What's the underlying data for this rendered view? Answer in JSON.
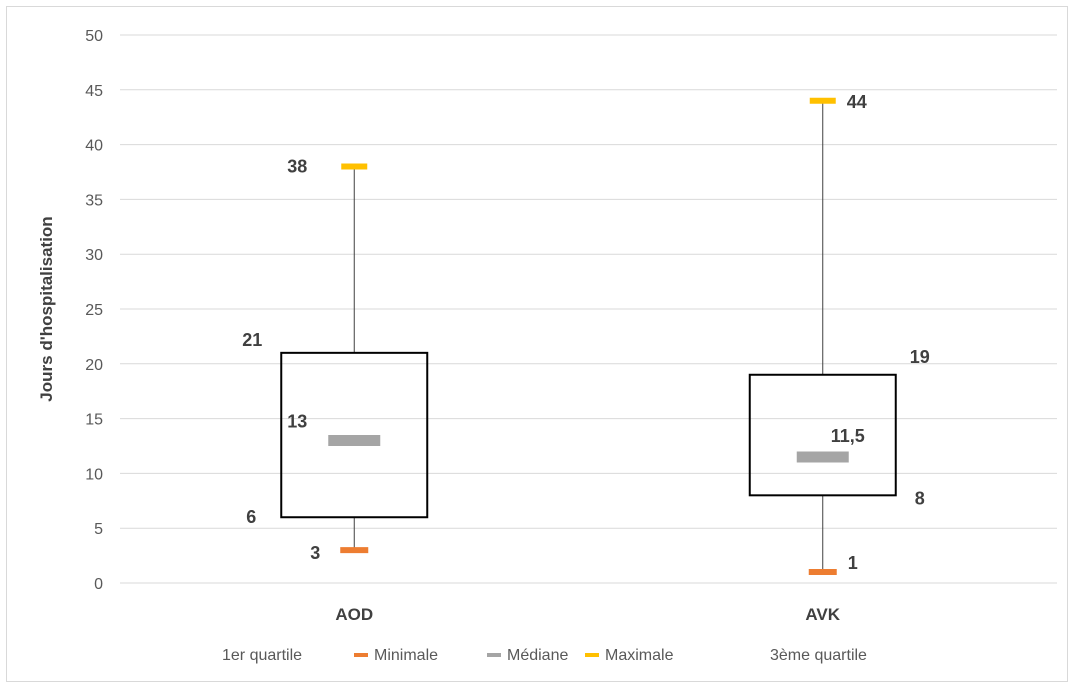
{
  "chart_data": {
    "type": "box",
    "title": "",
    "ylabel": "Jours d'hospitalisation",
    "xlabel": "",
    "ylim": [
      0,
      50
    ],
    "yticks": [
      0,
      5,
      10,
      15,
      20,
      25,
      30,
      35,
      40,
      45,
      50
    ],
    "grid": true,
    "legend_position": "bottom",
    "categories": [
      "AOD",
      "AVK"
    ],
    "boxes": [
      {
        "category": "AOD",
        "min": 3,
        "q1": 6,
        "median": 13,
        "q3": 21,
        "max": 38,
        "labels": {
          "min": "3",
          "q1": "6",
          "median": "13",
          "q3": "21",
          "max": "38"
        }
      },
      {
        "category": "AVK",
        "min": 1,
        "q1": 8,
        "median": 11.5,
        "q3": 19,
        "max": 44,
        "labels": {
          "min": "1",
          "q1": "8",
          "median": "11,5",
          "q3": "19",
          "max": "44"
        }
      }
    ],
    "legend": [
      {
        "name": "1er quartile",
        "color": ""
      },
      {
        "name": "Minimale",
        "color": "#ed7d31"
      },
      {
        "name": "Médiane",
        "color": "#a5a5a5"
      },
      {
        "name": "Maximale",
        "color": "#ffc000"
      },
      {
        "name": "3ème quartile",
        "color": ""
      }
    ],
    "colors": {
      "minimum": "#ed7d31",
      "median": "#a5a5a5",
      "maximum": "#ffc000",
      "box": "#000000",
      "grid": "#d9d9d9"
    }
  }
}
